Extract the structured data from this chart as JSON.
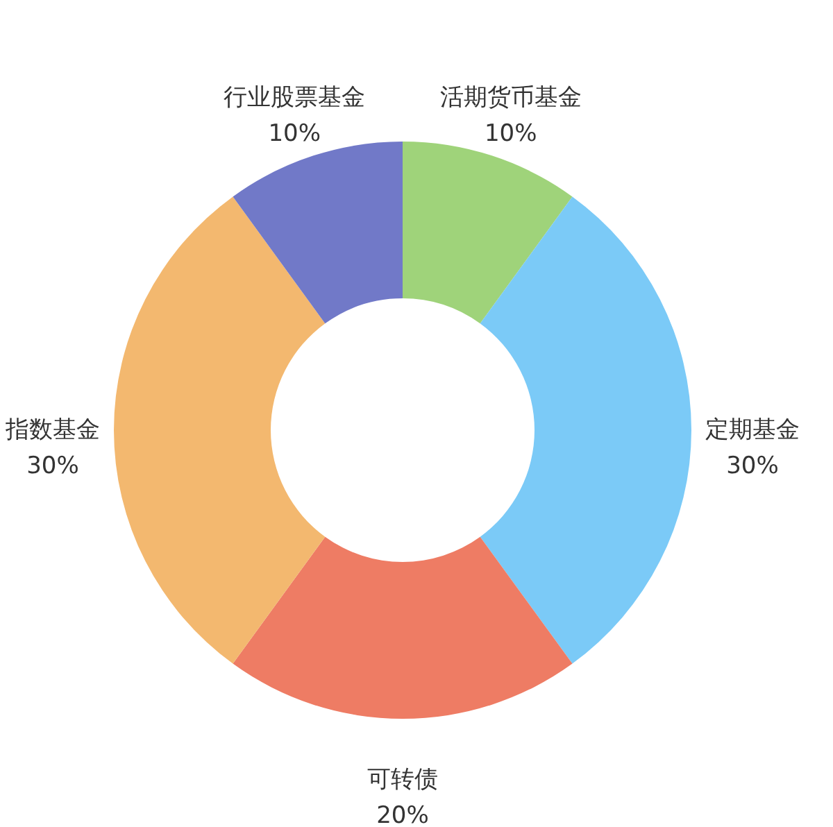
{
  "chart_data": {
    "type": "donut",
    "categories": [
      "活期货币基金",
      "定期基金",
      "可转债",
      "指数基金",
      "行业股票基金"
    ],
    "values": [
      10,
      30,
      20,
      30,
      10
    ],
    "colors": [
      "#9fd37a",
      "#7bcaf7",
      "#ee7c64",
      "#f3b86f",
      "#7179c8"
    ],
    "value_labels": [
      "10%",
      "30%",
      "20%",
      "30%",
      "10%"
    ]
  }
}
